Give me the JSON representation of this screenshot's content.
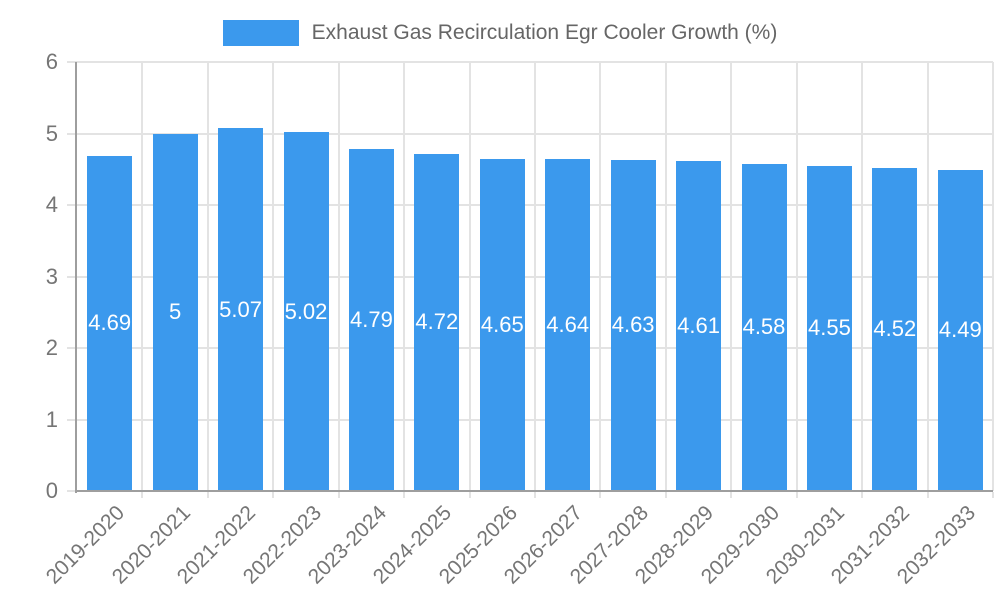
{
  "chart_data": {
    "type": "bar",
    "title": "Exhaust Gas Recirculation Egr Cooler Growth (%)",
    "series": [
      {
        "name": "Exhaust Gas Recirculation Egr Cooler Growth (%)",
        "values": [
          4.69,
          5,
          5.07,
          5.02,
          4.79,
          4.72,
          4.65,
          4.64,
          4.63,
          4.61,
          4.58,
          4.55,
          4.52,
          4.49
        ]
      }
    ],
    "categories": [
      "2019-2020",
      "2020-2021",
      "2021-2022",
      "2022-2023",
      "2023-2024",
      "2024-2025",
      "2025-2026",
      "2026-2027",
      "2027-2028",
      "2028-2029",
      "2029-2030",
      "2030-2031",
      "2031-2032",
      "2032-2033"
    ],
    "bar_value_labels": [
      "4.69",
      "5",
      "5.07",
      "5.02",
      "4.79",
      "4.72",
      "4.65",
      "4.64",
      "4.63",
      "4.61",
      "4.58",
      "4.55",
      "4.52",
      "4.49"
    ],
    "xlabel": "",
    "ylabel": "",
    "ylim": [
      0,
      6
    ],
    "yticks": [
      "0",
      "1",
      "2",
      "3",
      "4",
      "5",
      "6"
    ],
    "grid": true,
    "legend_position": "top"
  },
  "legend": {
    "label": "Exhaust Gas Recirculation Egr Cooler Growth (%)"
  },
  "colors": {
    "bar": "#3b99ed",
    "bar_value_text": "#ffffff",
    "grid": "#e3e3e3",
    "axis": "#9e9e9e",
    "tick_text": "#757575",
    "legend_text": "#666666"
  }
}
